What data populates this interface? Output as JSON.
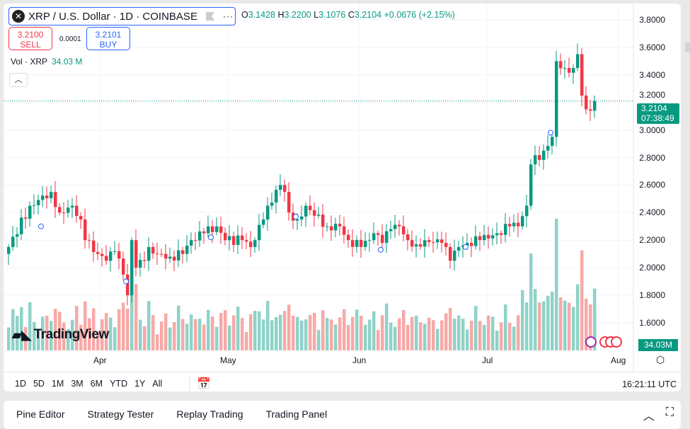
{
  "header": {
    "symbol": "XRP / U.S. Dollar · 1D · COINBASE",
    "more": "···",
    "ohlc": {
      "o_label": "O",
      "o": "3.1428",
      "h_label": "H",
      "h": "3.2200",
      "l_label": "L",
      "l": "3.1076",
      "c_label": "C",
      "c": "3.2104",
      "change": "+0.0676 (+2.15%)"
    }
  },
  "trade": {
    "sell_price": "3.2100",
    "sell_label": "SELL",
    "spread": "0.0001",
    "buy_price": "3.2101",
    "buy_label": "BUY"
  },
  "volume": {
    "label": "Vol · XRP",
    "value": "34.03 M",
    "tag": "34.03M"
  },
  "price_axis": {
    "labels": [
      "3.8000",
      "3.6000",
      "3.4000",
      "3.2000",
      "3.0000",
      "2.8000",
      "2.6000",
      "2.4000",
      "2.2000",
      "2.0000",
      "1.8000",
      "1.6000"
    ],
    "last_price": "3.2104",
    "countdown": "07:38:49"
  },
  "time_axis": {
    "labels": [
      "Apr",
      "May",
      "Jun",
      "Jul",
      "Aug"
    ]
  },
  "logo": "TradingView",
  "ranges": [
    "1D",
    "5D",
    "1M",
    "3M",
    "6M",
    "YTD",
    "1Y",
    "All"
  ],
  "clock": "16:21:11 UTC",
  "bottom_tabs": [
    "Pine Editor",
    "Strategy Tester",
    "Replay Trading",
    "Trading Panel"
  ],
  "colors": {
    "up": "#089981",
    "down": "#f23645",
    "up_vol": "#8fd2c8",
    "down_vol": "#f7a9a7",
    "accent": "#2962ff"
  },
  "chart_data": {
    "type": "candlestick",
    "ylim": [
      1.5,
      3.85
    ],
    "start_date": "2025-03-10",
    "close_keypoints": [
      [
        0,
        2.15
      ],
      [
        5,
        2.45
      ],
      [
        10,
        2.55
      ],
      [
        12,
        2.4
      ],
      [
        15,
        2.45
      ],
      [
        17,
        2.35
      ],
      [
        18,
        2.2
      ],
      [
        21,
        2.1
      ],
      [
        23,
        2.05
      ],
      [
        25,
        2.12
      ],
      [
        27,
        1.95
      ],
      [
        28,
        1.8
      ],
      [
        29,
        2.2
      ],
      [
        30,
        2.0
      ],
      [
        32,
        2.05
      ],
      [
        33,
        2.15
      ],
      [
        35,
        2.1
      ],
      [
        38,
        2.08
      ],
      [
        41,
        2.1
      ],
      [
        43,
        2.2
      ],
      [
        46,
        2.25
      ],
      [
        49,
        2.3
      ],
      [
        51,
        2.2
      ],
      [
        55,
        2.2
      ],
      [
        57,
        2.15
      ],
      [
        60,
        2.35
      ],
      [
        61,
        2.45
      ],
      [
        64,
        2.6
      ],
      [
        65,
        2.55
      ],
      [
        66,
        2.4
      ],
      [
        68,
        2.35
      ],
      [
        70,
        2.45
      ],
      [
        75,
        2.3
      ],
      [
        78,
        2.3
      ],
      [
        80,
        2.2
      ],
      [
        83,
        2.15
      ],
      [
        85,
        2.2
      ],
      [
        86,
        2.25
      ],
      [
        88,
        2.18
      ],
      [
        90,
        2.28
      ],
      [
        92,
        2.3
      ],
      [
        94,
        2.2
      ],
      [
        96,
        2.17
      ],
      [
        98,
        2.2
      ],
      [
        102,
        2.18
      ],
      [
        104,
        2.05
      ],
      [
        106,
        2.15
      ],
      [
        108,
        2.18
      ],
      [
        111,
        2.2
      ],
      [
        115,
        2.25
      ],
      [
        118,
        2.3
      ],
      [
        120,
        2.3
      ],
      [
        122,
        2.45
      ],
      [
        123,
        2.75
      ],
      [
        126,
        2.85
      ],
      [
        128,
        2.95
      ],
      [
        129,
        3.5
      ],
      [
        131,
        3.45
      ],
      [
        133,
        3.45
      ],
      [
        134,
        3.55
      ],
      [
        135,
        3.25
      ],
      [
        136,
        3.15
      ],
      [
        137,
        3.14
      ],
      [
        138,
        3.2104
      ]
    ]
  }
}
